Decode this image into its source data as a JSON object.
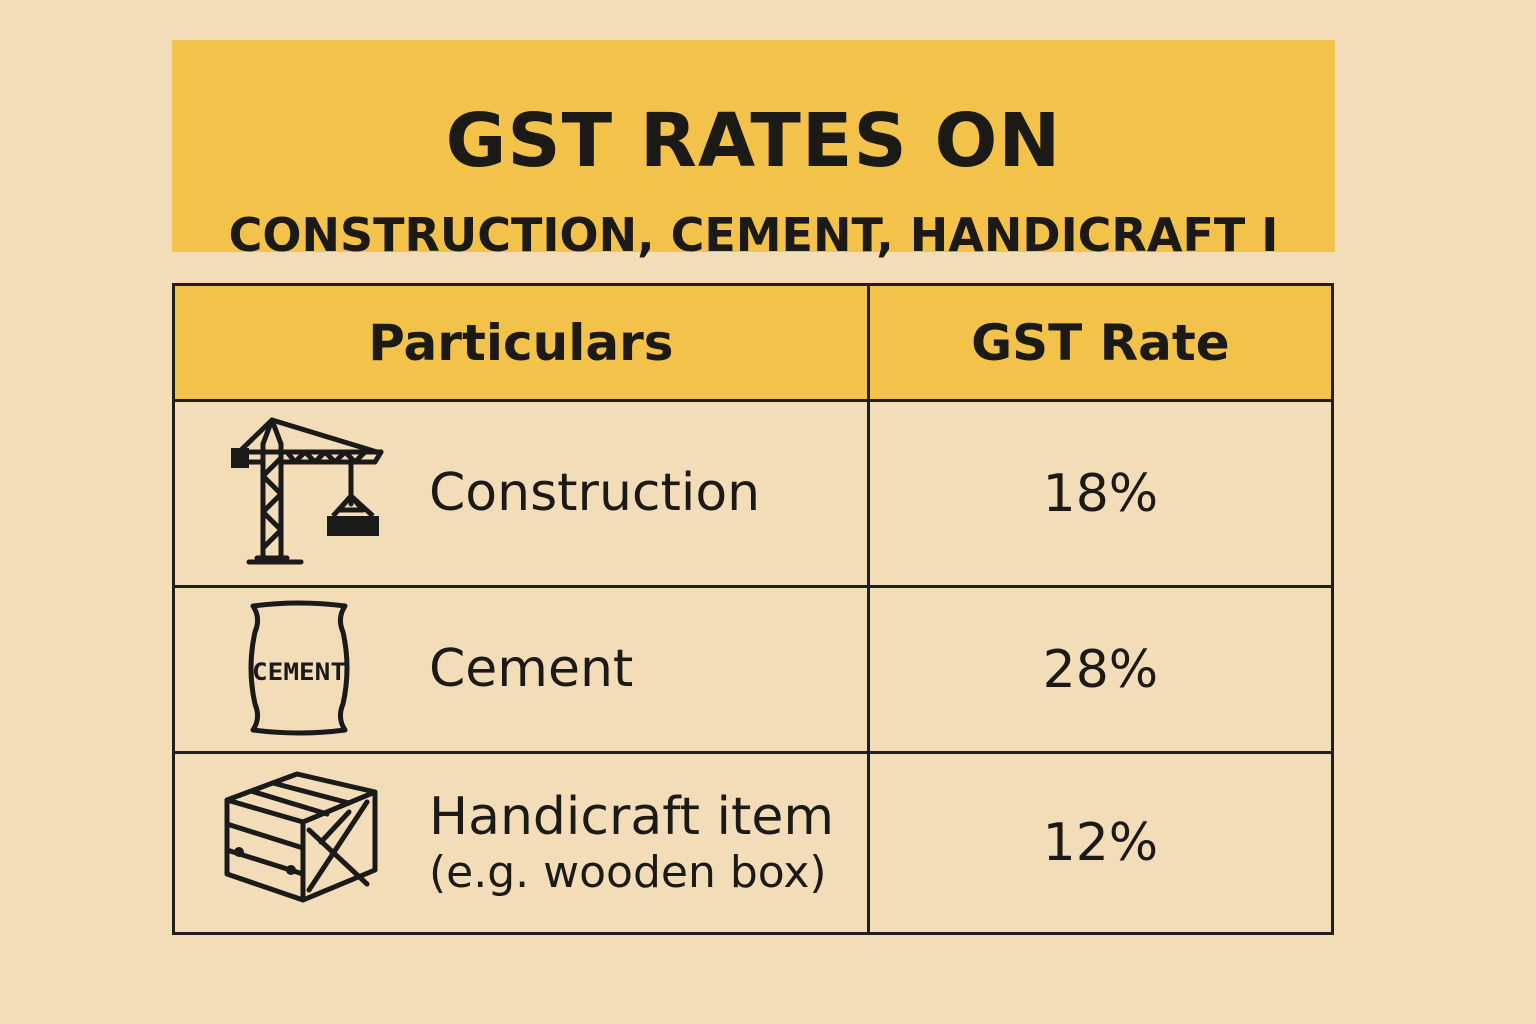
{
  "banner": {
    "title": "GST RATES ON",
    "subtitle": "CONSTRUCTION, CEMENT, HANDICRAFT I"
  },
  "table": {
    "headers": [
      "Particulars",
      "GST Rate"
    ],
    "rows": [
      {
        "icon": "crane-icon",
        "item": "Construction",
        "sub": "",
        "rate": "18%"
      },
      {
        "icon": "cement-bag-icon",
        "item": "Cement",
        "sub": "",
        "rate": "28%",
        "icon_text": "CEMENT"
      },
      {
        "icon": "wooden-box-icon",
        "item": "Handicraft item",
        "sub": "(e.g. wooden box)",
        "rate": "12%"
      }
    ]
  },
  "colors": {
    "background": "#f3ddb9",
    "accent": "#f3c24a",
    "text": "#1c1a17"
  }
}
